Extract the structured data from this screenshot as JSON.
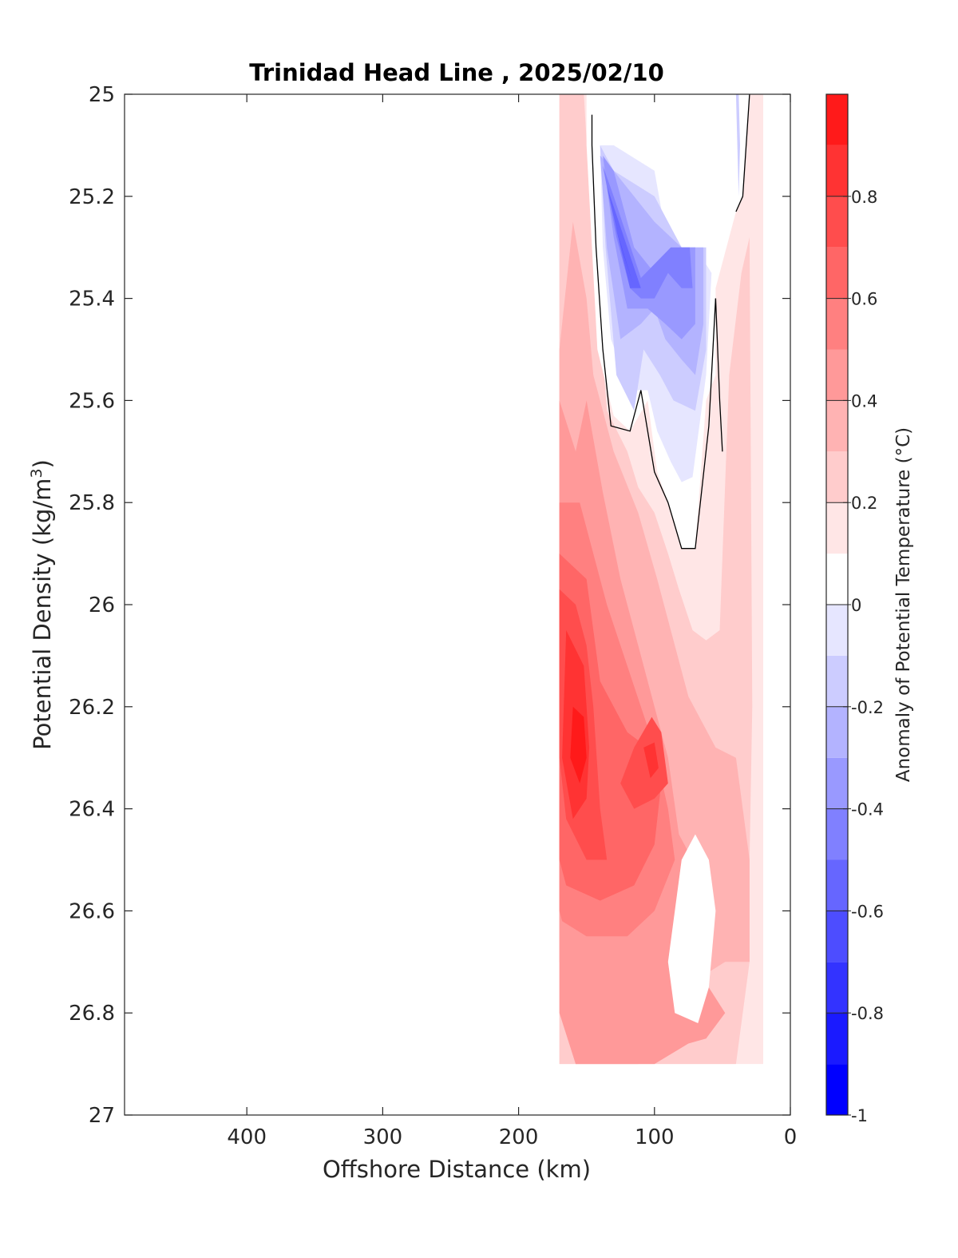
{
  "chart_data": {
    "type": "heatmap",
    "subtype": "filled-contour",
    "title": "Trinidad Head Line , 2025/02/10",
    "xlabel": "Offshore Distance (km)",
    "ylabel": "Potential Density (kg/m³)",
    "ylabel_base": "Potential Density (kg/m",
    "ylabel_sup": "3",
    "ylabel_close": ")",
    "x_reversed": true,
    "y_reversed": true,
    "xlim": [
      0,
      490
    ],
    "ylim": [
      25,
      27
    ],
    "xticks": [
      400,
      300,
      200,
      100,
      0
    ],
    "yticks": [
      25,
      25.2,
      25.4,
      25.6,
      25.8,
      26,
      26.2,
      26.4,
      26.6,
      26.8,
      27
    ],
    "ytick_labels": [
      "25",
      "25.2",
      "25.4",
      "25.6",
      "25.8",
      "26",
      "26.2",
      "26.4",
      "26.6",
      "26.8",
      "27"
    ],
    "grid": false,
    "colorbar": {
      "label": "Anomaly of Potential Temperature (°C)",
      "range": [
        -1,
        1
      ],
      "ticks": [
        -1,
        -0.8,
        -0.6,
        -0.4,
        -0.2,
        0,
        0.2,
        0.4,
        0.6,
        0.8
      ],
      "tick_labels": [
        "-1",
        "-0.8",
        "-0.6",
        "-0.4",
        "-0.2",
        "0",
        "0.2",
        "0.4",
        "0.6",
        "0.8"
      ],
      "levels": [
        -1,
        -0.9,
        -0.8,
        -0.7,
        -0.6,
        -0.5,
        -0.4,
        -0.3,
        -0.2,
        -0.1,
        0.1,
        0.2,
        0.3,
        0.4,
        0.5,
        0.6,
        0.7,
        0.8,
        0.9,
        1.0
      ],
      "colors": [
        "#0000ff",
        "#1a1aff",
        "#3333ff",
        "#4d4dff",
        "#6666ff",
        "#8080ff",
        "#9999ff",
        "#b3b3ff",
        "#ccccff",
        "#e6e6ff",
        "#ffffff",
        "#ffe6e6",
        "#ffcccc",
        "#ffb3b3",
        "#ff9999",
        "#ff8080",
        "#ff6666",
        "#ff4d4d",
        "#ff3333",
        "#ff1a1a"
      ]
    },
    "data_extent_km": [
      20,
      170
    ],
    "zero_contour_color": "#000000",
    "regions": [
      {
        "name": "anom-0.1",
        "value": 0.15,
        "color": "#ffe6e6",
        "points": [
          [
            170,
            25
          ],
          [
            20,
            25
          ],
          [
            20,
            26.9
          ],
          [
            170,
            26.9
          ]
        ]
      },
      {
        "name": "anom-0.2",
        "value": 0.25,
        "color": "#ffcccc",
        "points": [
          [
            170,
            25
          ],
          [
            152,
            25
          ],
          [
            148,
            25.18
          ],
          [
            140,
            25.45
          ],
          [
            135,
            25.62
          ],
          [
            120,
            25.7
          ],
          [
            112,
            25.77
          ],
          [
            100,
            25.82
          ],
          [
            90,
            25.9
          ],
          [
            82,
            25.97
          ],
          [
            72,
            26.05
          ],
          [
            62,
            26.07
          ],
          [
            52,
            26.05
          ],
          [
            45,
            25.55
          ],
          [
            36,
            25.35
          ],
          [
            30,
            25.28
          ],
          [
            28,
            26.2
          ],
          [
            30,
            26.5
          ],
          [
            30,
            26.7
          ],
          [
            40,
            26.9
          ],
          [
            170,
            26.9
          ]
        ]
      },
      {
        "name": "anom-0.3",
        "value": 0.35,
        "color": "#ffb3b3",
        "points": [
          [
            170,
            25.5
          ],
          [
            160,
            25.25
          ],
          [
            150,
            25.4
          ],
          [
            145,
            25.55
          ],
          [
            130,
            25.7
          ],
          [
            112,
            25.82
          ],
          [
            98,
            25.95
          ],
          [
            85,
            26.08
          ],
          [
            75,
            26.18
          ],
          [
            55,
            26.28
          ],
          [
            40,
            26.3
          ],
          [
            30,
            26.5
          ],
          [
            30,
            26.7
          ],
          [
            48,
            26.7
          ],
          [
            60,
            26.72
          ],
          [
            68,
            26.78
          ],
          [
            82,
            26.82
          ],
          [
            100,
            26.85
          ],
          [
            112,
            26.9
          ],
          [
            158,
            26.9
          ],
          [
            158,
            26.82
          ],
          [
            170,
            26.7
          ]
        ]
      },
      {
        "name": "anom-0.4",
        "value": 0.45,
        "color": "#ff9999",
        "points": [
          [
            170,
            25.6
          ],
          [
            158,
            25.7
          ],
          [
            150,
            25.6
          ],
          [
            138,
            25.78
          ],
          [
            125,
            25.95
          ],
          [
            112,
            26.08
          ],
          [
            100,
            26.2
          ],
          [
            90,
            26.3
          ],
          [
            82,
            26.45
          ],
          [
            72,
            26.5
          ],
          [
            60,
            26.75
          ],
          [
            48,
            26.8
          ],
          [
            62,
            26.85
          ],
          [
            75,
            26.86
          ],
          [
            100,
            26.9
          ],
          [
            158,
            26.9
          ],
          [
            170,
            26.8
          ]
        ]
      },
      {
        "name": "anom-0.5",
        "value": 0.55,
        "color": "#ff8080",
        "points": [
          [
            170,
            25.8
          ],
          [
            155,
            25.8
          ],
          [
            145,
            25.9
          ],
          [
            135,
            26.0
          ],
          [
            120,
            26.12
          ],
          [
            100,
            26.28
          ],
          [
            90,
            26.4
          ],
          [
            85,
            26.5
          ],
          [
            100,
            26.6
          ],
          [
            120,
            26.65
          ],
          [
            150,
            26.65
          ],
          [
            168,
            26.62
          ],
          [
            170,
            26.6
          ]
        ]
      },
      {
        "name": "anom-0.6",
        "value": 0.65,
        "color": "#ff6666",
        "points": [
          [
            170,
            25.9
          ],
          [
            150,
            25.95
          ],
          [
            140,
            26.15
          ],
          [
            120,
            26.25
          ],
          [
            105,
            26.28
          ],
          [
            95,
            26.35
          ],
          [
            100,
            26.47
          ],
          [
            115,
            26.55
          ],
          [
            140,
            26.58
          ],
          [
            165,
            26.55
          ],
          [
            170,
            26.5
          ]
        ]
      },
      {
        "name": "anom-0.7",
        "value": 0.75,
        "color": "#ff4d4d",
        "points": [
          [
            170,
            25.97
          ],
          [
            158,
            26.0
          ],
          [
            150,
            26.08
          ],
          [
            145,
            26.2
          ],
          [
            140,
            26.4
          ],
          [
            135,
            26.5
          ],
          [
            150,
            26.5
          ],
          [
            165,
            26.42
          ],
          [
            170,
            26.3
          ]
        ]
      },
      {
        "name": "anom-0.7b",
        "value": 0.75,
        "color": "#ff4d4d",
        "points": [
          [
            115,
            26.28
          ],
          [
            102,
            26.22
          ],
          [
            95,
            26.25
          ],
          [
            90,
            26.35
          ],
          [
            100,
            26.38
          ],
          [
            115,
            26.4
          ],
          [
            125,
            26.35
          ]
        ]
      },
      {
        "name": "anom-0.8",
        "value": 0.85,
        "color": "#ff3333",
        "points": [
          [
            165,
            26.05
          ],
          [
            152,
            26.12
          ],
          [
            148,
            26.28
          ],
          [
            150,
            26.38
          ],
          [
            160,
            26.42
          ],
          [
            168,
            26.3
          ]
        ]
      },
      {
        "name": "anom-0.9",
        "value": 0.95,
        "color": "#ff1a1a",
        "points": [
          [
            160,
            26.2
          ],
          [
            152,
            26.22
          ],
          [
            150,
            26.3
          ],
          [
            155,
            26.35
          ],
          [
            162,
            26.3
          ]
        ]
      },
      {
        "name": "anom-0.8b",
        "value": 0.85,
        "color": "#ff3333",
        "points": [
          [
            108,
            26.28
          ],
          [
            100,
            26.27
          ],
          [
            97,
            26.32
          ],
          [
            103,
            26.34
          ]
        ]
      },
      {
        "name": "anom-0.0",
        "value": 0.0,
        "color": "#ffffff",
        "points": [
          [
            150,
            25.04
          ],
          [
            150,
            25.1
          ],
          [
            146,
            25.3
          ],
          [
            142,
            25.5
          ],
          [
            130,
            25.63
          ],
          [
            118,
            25.66
          ],
          [
            105,
            25.6
          ],
          [
            98,
            25.74
          ],
          [
            90,
            25.8
          ],
          [
            80,
            25.89
          ],
          [
            70,
            25.89
          ],
          [
            62,
            25.6
          ],
          [
            55,
            25.55
          ],
          [
            55,
            25.38
          ],
          [
            40,
            25.23
          ],
          [
            35,
            25.2
          ],
          [
            30,
            25
          ],
          [
            100,
            25
          ],
          [
            150,
            25
          ]
        ]
      },
      {
        "name": "anom-0.0b",
        "value": 0.0,
        "color": "#ffffff",
        "points": [
          [
            80,
            26.5
          ],
          [
            70,
            26.45
          ],
          [
            60,
            26.5
          ],
          [
            55,
            26.6
          ],
          [
            60,
            26.75
          ],
          [
            68,
            26.82
          ],
          [
            85,
            26.8
          ],
          [
            90,
            26.7
          ],
          [
            85,
            26.6
          ]
        ]
      },
      {
        "name": "anom-neg0.1",
        "value": -0.15,
        "color": "#e6e6ff",
        "points": [
          [
            140,
            25.1
          ],
          [
            138,
            25.3
          ],
          [
            132,
            25.48
          ],
          [
            118,
            25.58
          ],
          [
            105,
            25.58
          ],
          [
            98,
            25.66
          ],
          [
            88,
            25.72
          ],
          [
            80,
            25.76
          ],
          [
            72,
            25.75
          ],
          [
            62,
            25.55
          ],
          [
            58,
            25.35
          ],
          [
            70,
            25.3
          ],
          [
            90,
            25.3
          ],
          [
            100,
            25.15
          ],
          [
            130,
            25.1
          ]
        ]
      },
      {
        "name": "anom-neg0.2",
        "value": -0.25,
        "color": "#ccccff",
        "points": [
          [
            140,
            25.1
          ],
          [
            136,
            25.3
          ],
          [
            128,
            25.55
          ],
          [
            115,
            25.62
          ],
          [
            108,
            25.5
          ],
          [
            96,
            25.55
          ],
          [
            86,
            25.6
          ],
          [
            70,
            25.62
          ],
          [
            62,
            25.5
          ],
          [
            62,
            25.3
          ],
          [
            80,
            25.3
          ],
          [
            100,
            25.2
          ],
          [
            130,
            25.15
          ]
        ]
      },
      {
        "name": "anom-neg0.3",
        "value": -0.3,
        "color": "#b3b3ff",
        "points": [
          [
            140,
            25.12
          ],
          [
            135,
            25.3
          ],
          [
            125,
            25.48
          ],
          [
            110,
            25.45
          ],
          [
            100,
            25.42
          ],
          [
            92,
            25.48
          ],
          [
            80,
            25.52
          ],
          [
            70,
            25.55
          ],
          [
            64,
            25.45
          ],
          [
            64,
            25.3
          ],
          [
            80,
            25.3
          ],
          [
            100,
            25.25
          ],
          [
            130,
            25.15
          ]
        ]
      },
      {
        "name": "anom-neg0.4",
        "value": -0.4,
        "color": "#9999ff",
        "points": [
          [
            138,
            25.12
          ],
          [
            130,
            25.28
          ],
          [
            120,
            25.42
          ],
          [
            105,
            25.42
          ],
          [
            92,
            25.45
          ],
          [
            80,
            25.48
          ],
          [
            70,
            25.45
          ],
          [
            70,
            25.3
          ],
          [
            82,
            25.3
          ],
          [
            100,
            25.35
          ],
          [
            115,
            25.3
          ],
          [
            130,
            25.15
          ]
        ]
      },
      {
        "name": "anom-neg0.5",
        "value": -0.5,
        "color": "#8080ff",
        "points": [
          [
            138,
            25.14
          ],
          [
            128,
            25.28
          ],
          [
            118,
            25.38
          ],
          [
            110,
            25.4
          ],
          [
            100,
            25.4
          ],
          [
            90,
            25.35
          ],
          [
            80,
            25.38
          ],
          [
            72,
            25.38
          ],
          [
            74,
            25.3
          ],
          [
            88,
            25.3
          ],
          [
            110,
            25.36
          ],
          [
            130,
            25.2
          ]
        ]
      },
      {
        "name": "anom-neg0.6",
        "value": -0.6,
        "color": "#6666ff",
        "points": [
          [
            135,
            25.18
          ],
          [
            125,
            25.3
          ],
          [
            118,
            25.38
          ],
          [
            110,
            25.38
          ],
          [
            120,
            25.3
          ],
          [
            130,
            25.22
          ]
        ]
      },
      {
        "name": "anom-neg0.7",
        "value": -0.7,
        "color": "#4d4dff",
        "points": [
          [
            130,
            25.25
          ],
          [
            122,
            25.32
          ],
          [
            116,
            25.37
          ],
          [
            124,
            25.3
          ]
        ]
      },
      {
        "name": "anom-neg-nearshore",
        "value": -0.2,
        "color": "#ccccff",
        "points": [
          [
            40,
            25
          ],
          [
            38,
            25.2
          ],
          [
            37,
            25.1
          ],
          [
            38,
            25
          ]
        ]
      }
    ],
    "zero_contours": [
      [
        [
          146,
          25.04
        ],
        [
          146,
          25.1
        ],
        [
          143,
          25.3
        ],
        [
          138,
          25.5
        ],
        [
          132,
          25.65
        ],
        [
          118,
          25.66
        ],
        [
          110,
          25.58
        ],
        [
          100,
          25.74
        ],
        [
          90,
          25.8
        ],
        [
          80,
          25.89
        ],
        [
          70,
          25.89
        ],
        [
          60,
          25.65
        ],
        [
          55,
          25.4
        ]
      ],
      [
        [
          40,
          25.23
        ],
        [
          35,
          25.2
        ],
        [
          30,
          25
        ]
      ],
      [
        [
          55,
          25.4
        ],
        [
          52,
          25.6
        ],
        [
          50,
          25.7
        ]
      ]
    ]
  }
}
